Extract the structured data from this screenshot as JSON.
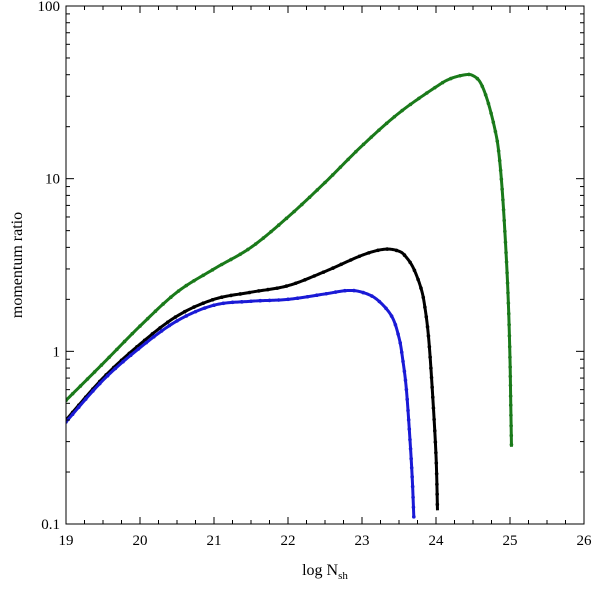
{
  "chart_data": {
    "type": "line",
    "title": "",
    "xlabel_main": "log N",
    "xlabel_sub": "sh",
    "ylabel": "momentum ratio",
    "xlim": [
      19,
      26
    ],
    "ylim": [
      0.1,
      100
    ],
    "yscale": "log",
    "grid": false,
    "legend": "none",
    "x_ticks": [
      19,
      20,
      21,
      22,
      23,
      24,
      25,
      26
    ],
    "x_tick_labels": [
      "19",
      "20",
      "21",
      "22",
      "23",
      "24",
      "25",
      "26"
    ],
    "y_ticks": [
      0.1,
      1,
      10,
      100
    ],
    "y_tick_labels": [
      "0.1",
      "1",
      "10",
      "100"
    ],
    "series": [
      {
        "color": "#1a7a1a",
        "x": [
          19.0,
          19.5,
          20.0,
          20.5,
          21.0,
          21.5,
          22.0,
          22.5,
          23.0,
          23.5,
          24.0,
          24.2,
          24.4,
          24.5,
          24.6,
          24.7,
          24.8,
          24.85,
          24.9,
          24.95,
          24.98,
          25.0,
          25.01,
          25.02
        ],
        "y": [
          0.52,
          0.85,
          1.4,
          2.2,
          3.0,
          4.0,
          6.0,
          9.5,
          15.5,
          24,
          34,
          38,
          40,
          39.5,
          36,
          28,
          19,
          14,
          8,
          3.5,
          1.8,
          0.9,
          0.5,
          0.28
        ]
      },
      {
        "color": "#000000",
        "x": [
          19.0,
          19.5,
          20.0,
          20.5,
          21.0,
          21.5,
          22.0,
          22.5,
          23.0,
          23.3,
          23.5,
          23.6,
          23.7,
          23.8,
          23.85,
          23.9,
          23.95,
          24.0,
          24.02
        ],
        "y": [
          0.4,
          0.7,
          1.1,
          1.6,
          2.0,
          2.2,
          2.4,
          2.9,
          3.6,
          3.9,
          3.8,
          3.5,
          3.0,
          2.3,
          1.8,
          1.2,
          0.6,
          0.25,
          0.12
        ]
      },
      {
        "color": "#1a1ad6",
        "x": [
          19.0,
          19.5,
          20.0,
          20.5,
          21.0,
          21.5,
          22.0,
          22.5,
          22.8,
          23.0,
          23.2,
          23.4,
          23.5,
          23.55,
          23.6,
          23.65,
          23.68,
          23.7
        ],
        "y": [
          0.39,
          0.68,
          1.05,
          1.5,
          1.85,
          1.95,
          2.0,
          2.15,
          2.25,
          2.2,
          2.0,
          1.6,
          1.2,
          0.9,
          0.6,
          0.3,
          0.18,
          0.11
        ]
      }
    ]
  }
}
